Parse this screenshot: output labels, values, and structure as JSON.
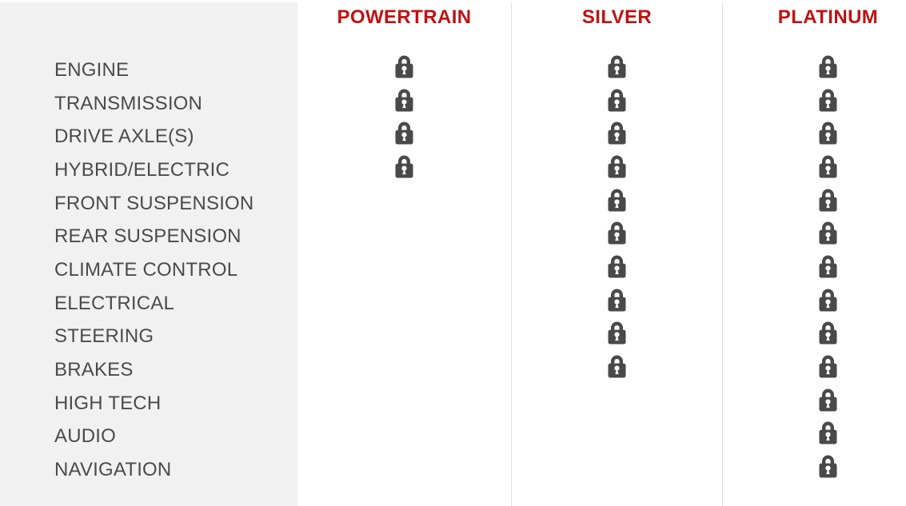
{
  "table": {
    "features": [
      "ENGINE",
      "TRANSMISSION",
      "DRIVE AXLE(S)",
      "HYBRID/ELECTRIC",
      "FRONT SUSPENSION",
      "REAR SUSPENSION",
      "CLIMATE CONTROL",
      "ELECTRICAL",
      "STEERING",
      "BRAKES",
      "HIGH TECH",
      "AUDIO",
      "NAVIGATION"
    ],
    "plans": [
      {
        "label": "POWERTRAIN",
        "coverage": [
          true,
          true,
          true,
          true,
          false,
          false,
          false,
          false,
          false,
          false,
          false,
          false,
          false
        ]
      },
      {
        "label": "SILVER",
        "coverage": [
          true,
          true,
          true,
          true,
          true,
          true,
          true,
          true,
          true,
          true,
          false,
          false,
          false
        ]
      },
      {
        "label": "PLATINUM",
        "coverage": [
          true,
          true,
          true,
          true,
          true,
          true,
          true,
          true,
          true,
          true,
          true,
          true,
          true
        ]
      }
    ],
    "covered_indicator": "lock-icon"
  },
  "colors": {
    "plan_header_red": "#c01212",
    "lock_gray": "#494949",
    "sidebar_bg": "#f1f1f2",
    "divider": "#dedede",
    "feature_label_gray": "#4b4b4d"
  }
}
